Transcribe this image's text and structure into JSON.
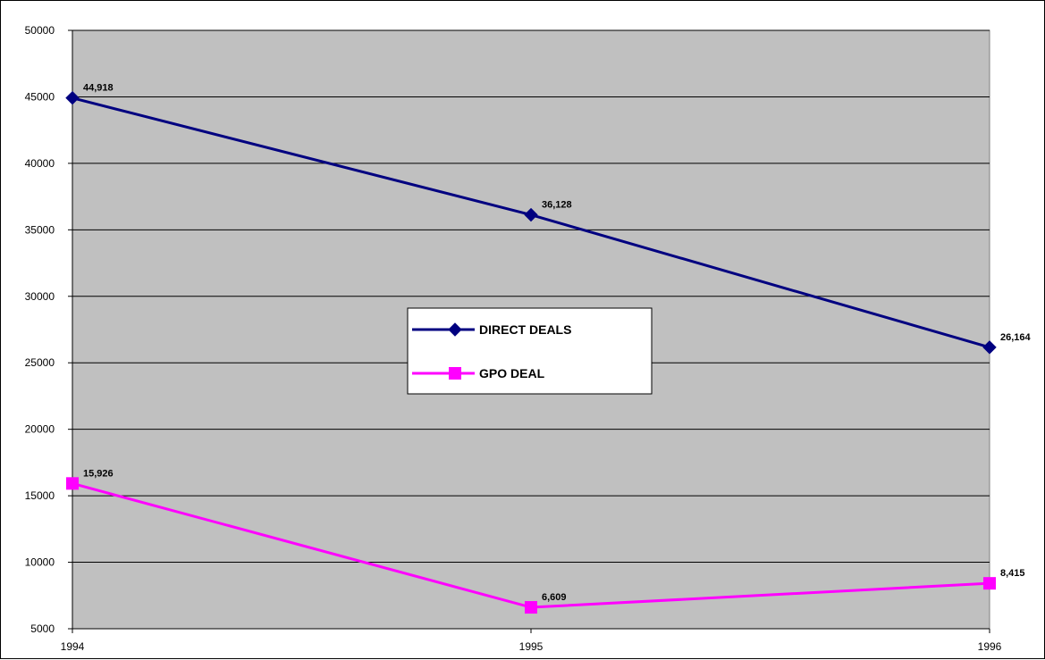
{
  "chart_data": {
    "type": "line",
    "title": "",
    "xlabel": "",
    "ylabel": "",
    "x": [
      "1994",
      "1995",
      "1996"
    ],
    "ylim": [
      5000,
      50000
    ],
    "yticks": [
      5000,
      10000,
      15000,
      20000,
      25000,
      30000,
      35000,
      40000,
      45000,
      50000
    ],
    "grid": true,
    "legend_position": "center",
    "series": [
      {
        "name": "DIRECT DEALS",
        "values": [
          44918,
          36128,
          26164
        ],
        "labels": [
          "44,918",
          "36,128",
          "26,164"
        ],
        "color": "#000080",
        "marker": "diamond"
      },
      {
        "name": "GPO DEAL",
        "values": [
          15926,
          6609,
          8415
        ],
        "labels": [
          "15,926",
          "6,609",
          "8,415"
        ],
        "color": "#ff00ff",
        "marker": "square"
      }
    ],
    "plot_background": "#c0c0c0"
  }
}
